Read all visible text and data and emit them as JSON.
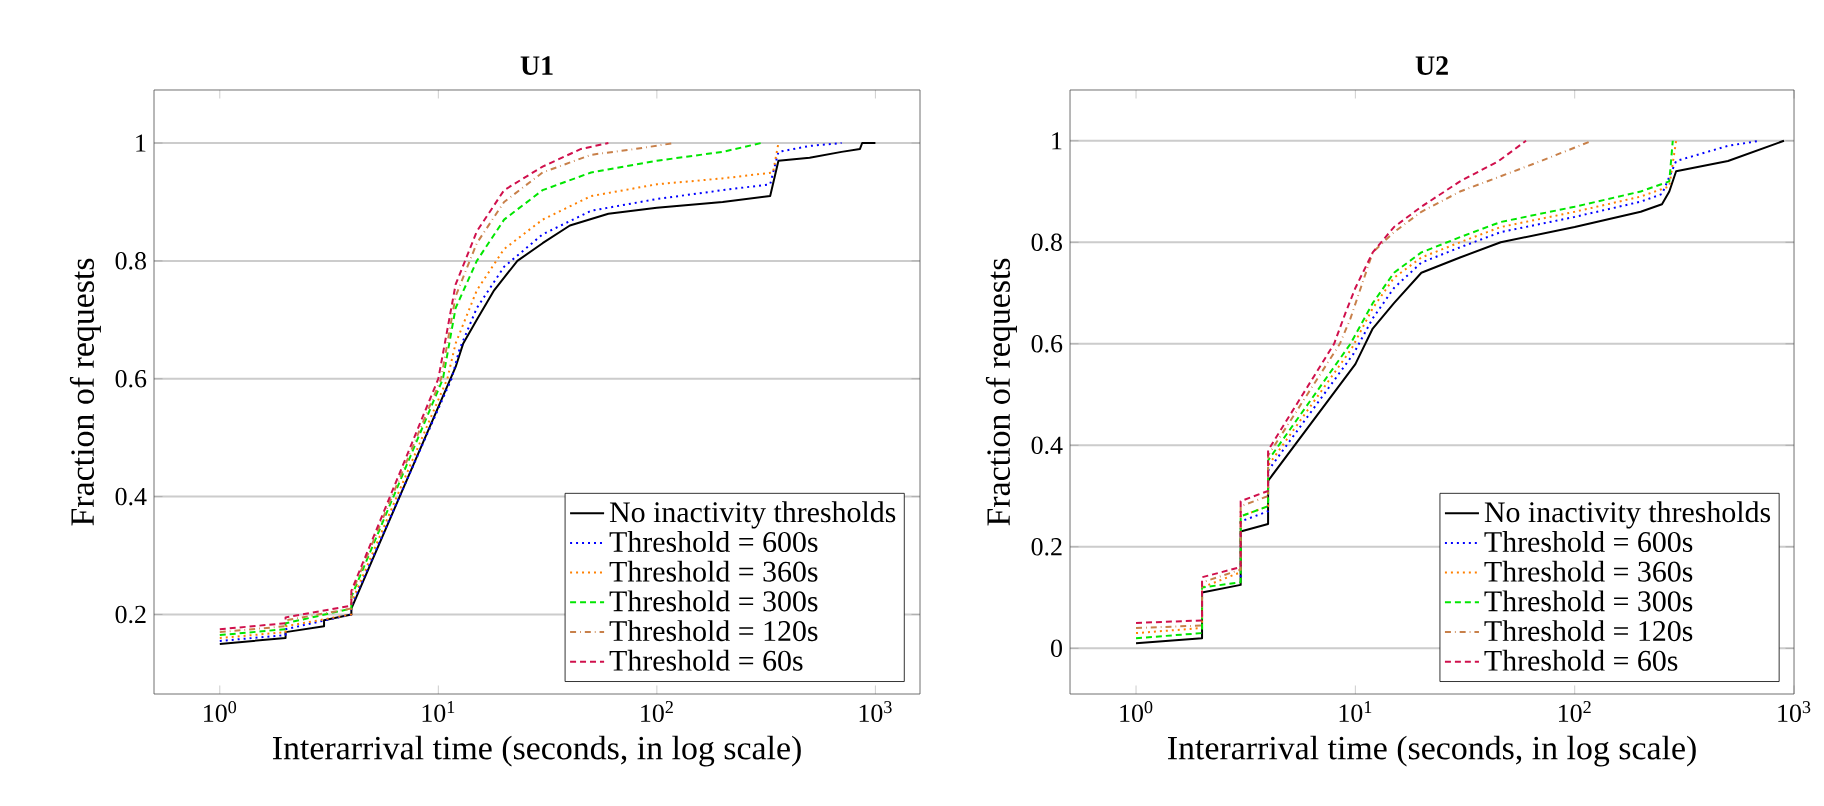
{
  "chart_data": [
    {
      "type": "line",
      "title": "U1",
      "xlabel": "Interarrival time (seconds, in log scale)",
      "ylabel": "Fraction of requests",
      "log": "x",
      "grid": "y",
      "legend": "bottom right",
      "xlim": [
        0.5,
        1600
      ],
      "xticks": [
        {
          "value": 1,
          "label": "10$^{0}$"
        },
        {
          "value": 10,
          "label": "10$^{1}$"
        },
        {
          "value": 100,
          "label": "10$^{2}$"
        },
        {
          "value": 1000,
          "label": "10$^{3}$"
        }
      ],
      "ylim": [
        0.065,
        1.09
      ],
      "yticks": [
        0.2,
        0.4,
        0.6,
        0.8,
        1
      ],
      "series": [
        {
          "name": "No inactivity thresholds",
          "color": "#000000",
          "line_style": "solid",
          "x": [
            1,
            2,
            2,
            3,
            3,
            4,
            4,
            12,
            13,
            15,
            18,
            23,
            30,
            40,
            60,
            100,
            200,
            330,
            360,
            500,
            700,
            850,
            870,
            1000
          ],
          "values": [
            0.15,
            0.16,
            0.17,
            0.18,
            0.19,
            0.2,
            0.21,
            0.62,
            0.66,
            0.7,
            0.75,
            0.8,
            0.83,
            0.86,
            0.88,
            0.89,
            0.9,
            0.91,
            0.97,
            0.975,
            0.985,
            0.99,
            1.0,
            1.0
          ]
        },
        {
          "name": "Threshold = 600s",
          "color": "#0000ff",
          "line_style": "dotted",
          "x": [
            1,
            2,
            2,
            4,
            4,
            11.5,
            12.5,
            15,
            20,
            30,
            50,
            100,
            200,
            330,
            360,
            500,
            700
          ],
          "values": [
            0.155,
            0.165,
            0.175,
            0.2,
            0.215,
            0.6,
            0.65,
            0.72,
            0.79,
            0.845,
            0.885,
            0.905,
            0.92,
            0.93,
            0.985,
            0.995,
            1.0
          ]
        },
        {
          "name": "Threshold = 360s",
          "color": "#ff8000",
          "line_style": "dotted",
          "x": [
            1,
            2,
            2,
            4,
            4,
            11,
            12,
            15,
            20,
            30,
            50,
            100,
            200,
            340,
            360
          ],
          "values": [
            0.16,
            0.17,
            0.18,
            0.2,
            0.22,
            0.6,
            0.66,
            0.75,
            0.82,
            0.87,
            0.91,
            0.93,
            0.94,
            0.95,
            1.0
          ]
        },
        {
          "name": "Threshold = 300s",
          "color": "#00e600",
          "line_style": "dashed",
          "x": [
            1,
            2,
            2,
            4,
            4,
            10.5,
            12,
            15,
            20,
            30,
            50,
            100,
            200,
            300
          ],
          "values": [
            0.165,
            0.175,
            0.185,
            0.21,
            0.23,
            0.6,
            0.72,
            0.8,
            0.87,
            0.92,
            0.95,
            0.97,
            0.985,
            1.0
          ]
        },
        {
          "name": "Threshold = 120s",
          "color": "#c8804a",
          "line_style": "dashdot",
          "x": [
            1,
            2,
            2,
            4,
            4,
            10.3,
            12,
            15,
            20,
            30,
            50,
            80,
            120
          ],
          "values": [
            0.17,
            0.18,
            0.19,
            0.21,
            0.235,
            0.6,
            0.74,
            0.83,
            0.9,
            0.95,
            0.98,
            0.99,
            1.0
          ]
        },
        {
          "name": "Threshold = 60s",
          "color": "#d0104c",
          "line_style": "dashed",
          "x": [
            1,
            2,
            2,
            4,
            4,
            10,
            12,
            15,
            20,
            30,
            45,
            60
          ],
          "values": [
            0.175,
            0.185,
            0.195,
            0.215,
            0.24,
            0.6,
            0.76,
            0.85,
            0.92,
            0.96,
            0.99,
            1.0
          ]
        }
      ]
    },
    {
      "type": "line",
      "title": "U2",
      "xlabel": "Interarrival time (seconds, in log scale)",
      "ylabel": "Fraction of requests",
      "log": "x",
      "grid": "y",
      "legend": "bottom right",
      "xlim": [
        0.5,
        1000
      ],
      "xticks": [
        {
          "value": 1,
          "label": "10$^{0}$"
        },
        {
          "value": 10,
          "label": "10$^{1}$"
        },
        {
          "value": 100,
          "label": "10$^{2}$"
        },
        {
          "value": 1000,
          "label": "10$^{3}$"
        }
      ],
      "ylim": [
        -0.09,
        1.1
      ],
      "yticks": [
        0,
        0.2,
        0.4,
        0.6,
        0.8,
        1
      ],
      "series": [
        {
          "name": "No inactivity thresholds",
          "color": "#000000",
          "line_style": "solid",
          "x": [
            1,
            2,
            2,
            3,
            3,
            4,
            4,
            10,
            12,
            15,
            20,
            30,
            46,
            100,
            200,
            250,
            270,
            290,
            500,
            900
          ],
          "values": [
            0.01,
            0.02,
            0.11,
            0.125,
            0.23,
            0.245,
            0.33,
            0.56,
            0.63,
            0.68,
            0.74,
            0.77,
            0.8,
            0.83,
            0.86,
            0.875,
            0.9,
            0.94,
            0.96,
            1.0
          ]
        },
        {
          "name": "Threshold = 600s",
          "color": "#0000ff",
          "line_style": "dotted",
          "x": [
            3,
            3,
            4,
            4,
            9.8,
            12,
            15,
            20,
            30,
            46,
            100,
            200,
            250,
            290,
            500,
            700
          ],
          "values": [
            0.14,
            0.25,
            0.27,
            0.35,
            0.58,
            0.65,
            0.71,
            0.76,
            0.79,
            0.82,
            0.85,
            0.88,
            0.895,
            0.96,
            0.99,
            1.0
          ]
        },
        {
          "name": "Threshold = 360s",
          "color": "#ff8000",
          "line_style": "dotted",
          "x": [
            1,
            2,
            2,
            3,
            3,
            4,
            4,
            9.6,
            12,
            15,
            20,
            30,
            46,
            100,
            200,
            270,
            290
          ],
          "values": [
            0.03,
            0.04,
            0.12,
            0.15,
            0.26,
            0.28,
            0.36,
            0.59,
            0.67,
            0.73,
            0.77,
            0.8,
            0.83,
            0.86,
            0.89,
            0.91,
            1.0
          ]
        },
        {
          "name": "Threshold = 300s",
          "color": "#00e600",
          "line_style": "dashed",
          "x": [
            1,
            2,
            2,
            3,
            3,
            4,
            4,
            9.5,
            12,
            15,
            20,
            30,
            46,
            100,
            200,
            270,
            280
          ],
          "values": [
            0.02,
            0.03,
            0.12,
            0.13,
            0.26,
            0.28,
            0.37,
            0.6,
            0.68,
            0.74,
            0.78,
            0.81,
            0.84,
            0.87,
            0.9,
            0.92,
            1.0
          ]
        },
        {
          "name": "Threshold = 120s",
          "color": "#c8804a",
          "line_style": "dashdot",
          "x": [
            1,
            2,
            2,
            3,
            3,
            4,
            4,
            8.5,
            9.5,
            12,
            15,
            20,
            30,
            46,
            70,
            120
          ],
          "values": [
            0.04,
            0.045,
            0.13,
            0.155,
            0.28,
            0.3,
            0.38,
            0.6,
            0.65,
            0.78,
            0.82,
            0.86,
            0.9,
            0.93,
            0.96,
            1.0
          ]
        },
        {
          "name": "Threshold = 60s",
          "color": "#d0104c",
          "line_style": "dashed",
          "x": [
            1,
            2,
            2,
            3,
            3,
            4,
            4,
            8,
            9,
            10,
            12,
            15,
            20,
            30,
            45,
            60
          ],
          "values": [
            0.05,
            0.055,
            0.14,
            0.16,
            0.29,
            0.31,
            0.39,
            0.6,
            0.66,
            0.71,
            0.78,
            0.83,
            0.87,
            0.92,
            0.96,
            1.0
          ]
        }
      ]
    }
  ]
}
